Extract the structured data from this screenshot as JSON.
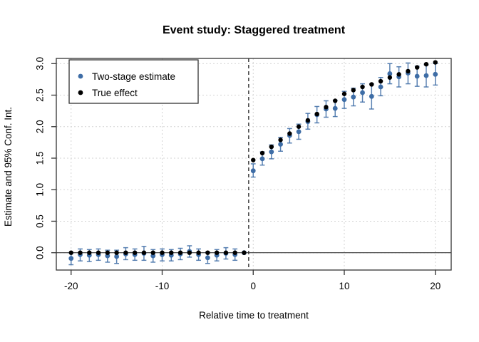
{
  "title": "Event study: Staggered treatment",
  "axes": {
    "xlabel": "Relative time to treatment",
    "ylabel": "Estimate and 95% Conf. Int."
  },
  "legend": {
    "items": [
      {
        "label": "Two-stage estimate",
        "color": "#3e6da6"
      },
      {
        "label": "True effect",
        "color": "#000000"
      }
    ]
  },
  "colors": {
    "estimate_blue": "#3e6da6",
    "true_black": "#000000",
    "grid": "#d3d3d3",
    "box": "#333333",
    "ref_line": "#333333"
  },
  "chart_data": {
    "type": "scatter",
    "title": "Event study: Staggered treatment",
    "xlabel": "Relative time to treatment",
    "ylabel": "Estimate and 95% Conf. Int.",
    "xlim": [
      -21.6,
      21.7
    ],
    "ylim": [
      -0.28,
      3.08
    ],
    "x_ticks": [
      -20,
      -10,
      0,
      10,
      20
    ],
    "y_ticks": [
      0.0,
      0.5,
      1.0,
      1.5,
      2.0,
      2.5,
      3.0
    ],
    "grid": true,
    "legend_position": "top-left",
    "reference_lines": {
      "vline_dashed_x": -0.5,
      "hline_solid_y": 0
    },
    "x": [
      -20,
      -19,
      -18,
      -17,
      -16,
      -15,
      -14,
      -13,
      -12,
      -11,
      -10,
      -9,
      -8,
      -7,
      -6,
      -5,
      -4,
      -3,
      -2,
      -1,
      0,
      1,
      2,
      3,
      4,
      5,
      6,
      7,
      8,
      9,
      10,
      11,
      12,
      13,
      14,
      15,
      16,
      17,
      18,
      19,
      20
    ],
    "series": [
      {
        "name": "Two-stage estimate",
        "color": "#3e6da6",
        "y": [
          -0.09,
          -0.03,
          -0.04,
          -0.03,
          -0.05,
          -0.06,
          -0.02,
          -0.03,
          -0.01,
          -0.05,
          -0.03,
          -0.04,
          -0.02,
          0.02,
          -0.03,
          -0.08,
          -0.04,
          -0.01,
          -0.03,
          0.0,
          1.3,
          1.49,
          1.6,
          1.72,
          1.86,
          1.92,
          2.08,
          2.19,
          2.28,
          2.29,
          2.43,
          2.47,
          2.54,
          2.48,
          2.63,
          2.84,
          2.79,
          2.85,
          2.8,
          2.81,
          2.83
        ],
        "ci_low": [
          -0.19,
          -0.13,
          -0.14,
          -0.12,
          -0.15,
          -0.17,
          -0.11,
          -0.12,
          -0.12,
          -0.15,
          -0.13,
          -0.13,
          -0.11,
          -0.07,
          -0.12,
          -0.17,
          -0.13,
          -0.1,
          -0.12,
          0.0,
          1.2,
          1.39,
          1.49,
          1.61,
          1.74,
          1.8,
          1.96,
          2.06,
          2.15,
          2.16,
          2.29,
          2.33,
          2.39,
          2.28,
          2.49,
          2.68,
          2.63,
          2.68,
          2.64,
          2.63,
          2.66
        ],
        "ci_high": [
          0.0,
          0.06,
          0.05,
          0.06,
          0.04,
          0.04,
          0.08,
          0.06,
          0.1,
          0.05,
          0.06,
          0.05,
          0.07,
          0.11,
          0.06,
          0.01,
          0.05,
          0.08,
          0.06,
          0.0,
          1.41,
          1.6,
          1.71,
          1.83,
          1.97,
          2.04,
          2.21,
          2.32,
          2.41,
          2.42,
          2.56,
          2.61,
          2.68,
          2.68,
          2.78,
          3.0,
          2.95,
          3.01,
          2.96,
          2.98,
          3.0
        ]
      },
      {
        "name": "True effect",
        "color": "#000000",
        "y": [
          0,
          0,
          0,
          0,
          0,
          0,
          0,
          0,
          0,
          0,
          0,
          0,
          0,
          0,
          0,
          0,
          0,
          0,
          0,
          0,
          1.47,
          1.58,
          1.68,
          1.79,
          1.89,
          2.0,
          2.1,
          2.2,
          2.31,
          2.41,
          2.52,
          2.58,
          2.63,
          2.67,
          2.72,
          2.78,
          2.83,
          2.88,
          2.94,
          2.99,
          3.02
        ]
      }
    ]
  }
}
